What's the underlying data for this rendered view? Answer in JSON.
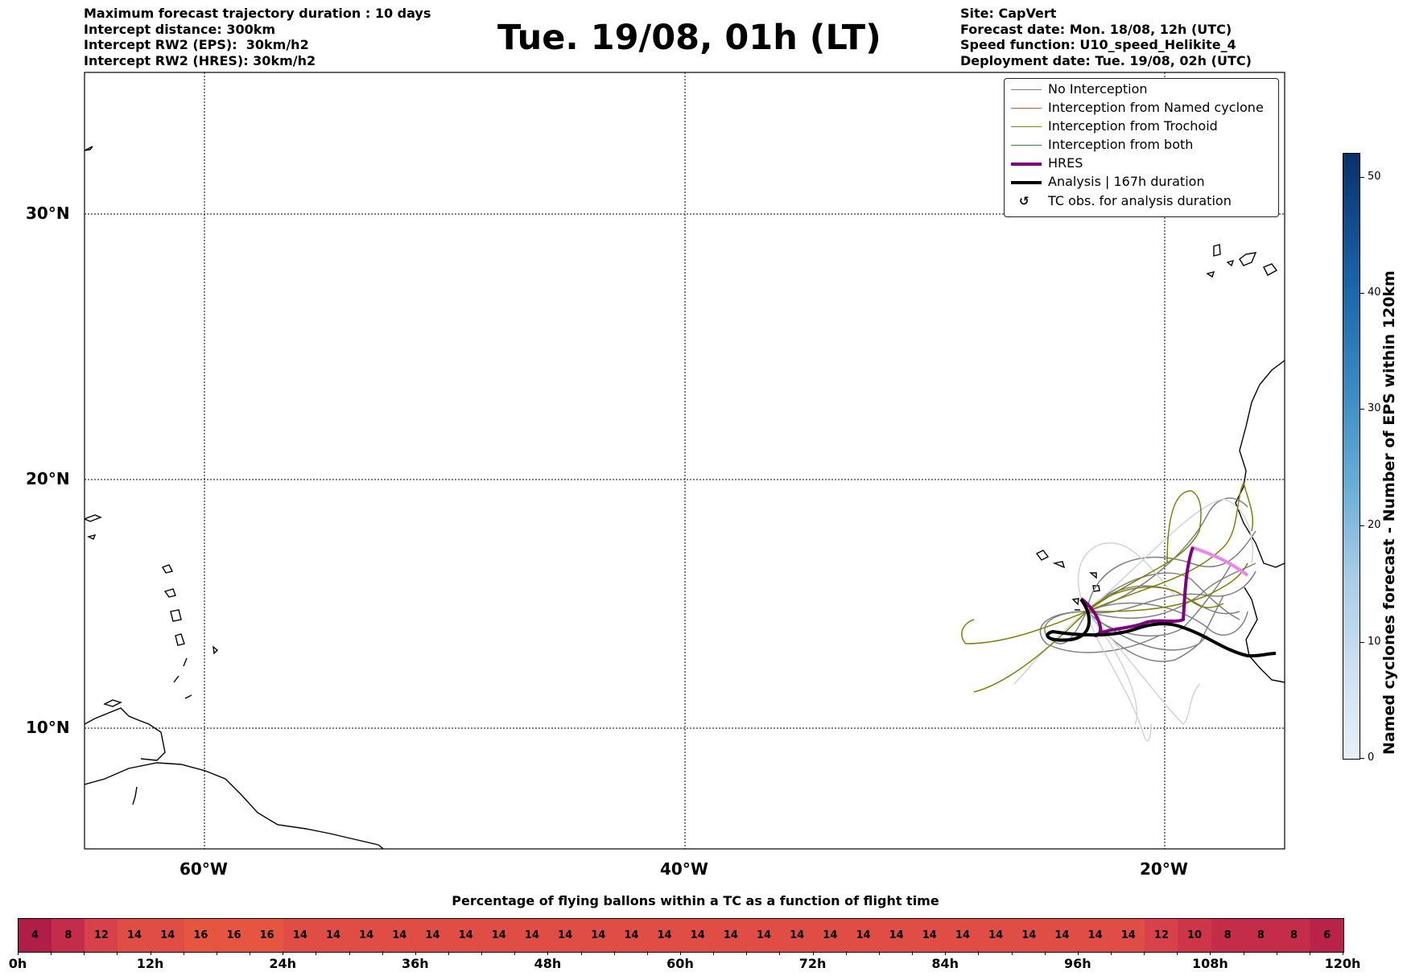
{
  "header_left": {
    "line1": "Maximum forecast trajectory duration : 10 days",
    "line2": "Intercept distance: 300km",
    "line3": "Intercept RW2 (EPS):  30km/h2",
    "line4": "Intercept RW2 (HRES): 30km/h2"
  },
  "title": "Tue. 19/08, 01h (LT)",
  "header_right": {
    "line1": "Site: CapVert",
    "line2": "Forecast date: Mon. 18/08, 12h (UTC)",
    "line3": "Speed function: U10_speed_Helikite_4",
    "line4": "Deployment date: Tue. 19/08, 02h (UTC)"
  },
  "map": {
    "lon_labels": [
      "60°W",
      "40°W",
      "20°W"
    ],
    "lat_labels": [
      "30°N",
      "20°N",
      "10°N"
    ]
  },
  "legend": {
    "items": [
      {
        "label": "No Interception",
        "color": "#808080"
      },
      {
        "label": "Interception from Named cyclone",
        "color": "#e8502a"
      },
      {
        "label": "Interception from Trochoid",
        "color": "#8b8b00"
      },
      {
        "label": "Interception from both",
        "color": "#2e8b2e"
      },
      {
        "label": "HRES",
        "color": "#800080"
      },
      {
        "label": "Analysis | 167h duration",
        "color": "#000000"
      },
      {
        "label": "TC obs. for analysis duration",
        "symbol": "↺"
      }
    ]
  },
  "colorbar": {
    "title": "Named cyclones forecast - Number of EPS within 120km",
    "ticks": [
      "0",
      "10",
      "20",
      "30",
      "40",
      "50"
    ]
  },
  "strip": {
    "title": "Percentage of flying ballons within a TC as a function of flight time",
    "values": [
      "4",
      "8",
      "12",
      "14",
      "14",
      "16",
      "16",
      "16",
      "14",
      "14",
      "14",
      "14",
      "14",
      "14",
      "14",
      "14",
      "14",
      "14",
      "14",
      "14",
      "14",
      "14",
      "14",
      "14",
      "14",
      "14",
      "14",
      "14",
      "14",
      "14",
      "14",
      "14",
      "14",
      "14",
      "12",
      "10",
      "8",
      "8",
      "8",
      "6"
    ],
    "time_labels": [
      "0h",
      "12h",
      "24h",
      "36h",
      "48h",
      "60h",
      "72h",
      "84h",
      "96h",
      "108h",
      "120h"
    ]
  }
}
